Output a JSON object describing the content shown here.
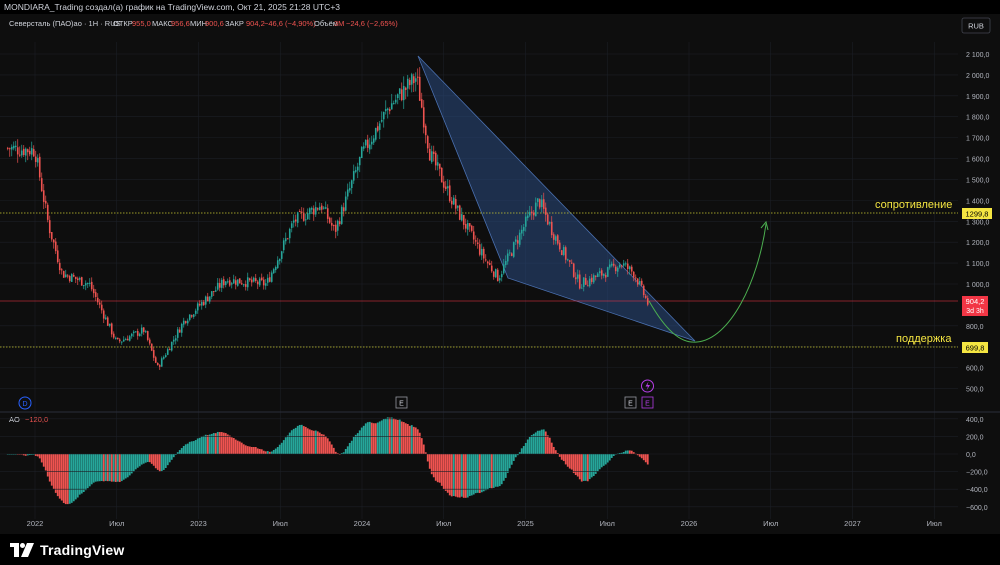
{
  "header": {
    "caption": "MONDIARA_Trading создал(а) график на TradingView.com, Окт 21, 2025 21:28 UTC+3"
  },
  "legend": {
    "symbol": "Северсталь (ПАО)ао · 1Н · RUS",
    "open_label": "ОТКР",
    "open_value": "955,0",
    "high_label": "МАКС",
    "high_value": "956,6",
    "low_label": "МИН",
    "low_value": "900,6",
    "close_label": "ЗАКР",
    "close_value": "904,2",
    "change_value": "−46,6 (−4,90%)",
    "volume_label": "Объём",
    "volume_value": "3M",
    "extra_change": "−24,6 (−2,65%)"
  },
  "currency": "RUB",
  "price_axis_ticks": [
    "2 100,0",
    "2 000,0",
    "1 900,0",
    "1 800,0",
    "1 700,0",
    "1 600,0",
    "1 500,0",
    "1 400,0",
    "1 300,0",
    "1 200,0",
    "1 100,0",
    "1 000,0",
    "800,0",
    "700,0",
    "600,0",
    "500,0"
  ],
  "price_tags": {
    "resistance": "1299,8",
    "support": "699,8",
    "last_price": "904,2",
    "countdown": "3d 3h"
  },
  "annotations": {
    "resistance_label": "сопротивление",
    "support_label": "поддержка"
  },
  "events": {
    "dividend": "D",
    "earnings_1": "E",
    "earnings_2": "E",
    "earnings_3": "E",
    "lightning_icon": "lightning-icon"
  },
  "ao_panel": {
    "title": "AO",
    "value": "−120,0",
    "ticks": [
      "400,0",
      "200,0",
      "0,0",
      "−200,0",
      "−400,0",
      "−600,0"
    ]
  },
  "time_axis": [
    "2022",
    "Июл",
    "2023",
    "Июл",
    "2024",
    "Июл",
    "2025",
    "Июл",
    "2026",
    "Июл",
    "2027",
    "Июл"
  ],
  "footer": {
    "brand": "TradingView"
  },
  "colors": {
    "up": "#26a69a",
    "down": "#ef5350",
    "level_line": "#c8c832",
    "triangle_fill": "#2a4a80",
    "arrow": "#4caf50",
    "resistance_tag": "#f5e642",
    "last_price_tag": "#f23645"
  },
  "chart_data": {
    "type": "candlestick",
    "timeframe": "1W",
    "price_range": [
      450,
      2100
    ],
    "ao_range": [
      -600,
      400
    ],
    "levels": [
      {
        "name": "сопротивление",
        "price": 1299.8
      },
      {
        "name": "поддержка",
        "price": 699.8
      },
      {
        "name": "last",
        "price": 904.2
      }
    ],
    "anchors": [
      {
        "date": "2021-11",
        "price": 1650
      },
      {
        "date": "2022-01",
        "price": 1640
      },
      {
        "date": "2022-02",
        "price": 1280
      },
      {
        "date": "2022-03",
        "price": 1050
      },
      {
        "date": "2022-05",
        "price": 1000
      },
      {
        "date": "2022-07",
        "price": 720
      },
      {
        "date": "2022-09",
        "price": 780
      },
      {
        "date": "2022-10",
        "price": 600
      },
      {
        "date": "2022-12",
        "price": 830
      },
      {
        "date": "2023-03",
        "price": 1020
      },
      {
        "date": "2023-06",
        "price": 1000
      },
      {
        "date": "2023-08",
        "price": 1300
      },
      {
        "date": "2023-10",
        "price": 1380
      },
      {
        "date": "2023-11",
        "price": 1250
      },
      {
        "date": "2024-01",
        "price": 1620
      },
      {
        "date": "2024-03",
        "price": 1850
      },
      {
        "date": "2024-05",
        "price": 1990
      },
      {
        "date": "2024-06",
        "price": 1620
      },
      {
        "date": "2024-08",
        "price": 1350
      },
      {
        "date": "2024-10",
        "price": 1120
      },
      {
        "date": "2024-11",
        "price": 1030
      },
      {
        "date": "2025-01",
        "price": 1290
      },
      {
        "date": "2025-02",
        "price": 1400
      },
      {
        "date": "2025-03",
        "price": 1250
      },
      {
        "date": "2025-05",
        "price": 1000
      },
      {
        "date": "2025-07",
        "price": 1060
      },
      {
        "date": "2025-08",
        "price": 1100
      },
      {
        "date": "2025-09",
        "price": 1050
      },
      {
        "date": "2025-10",
        "price": 904.2
      }
    ]
  }
}
